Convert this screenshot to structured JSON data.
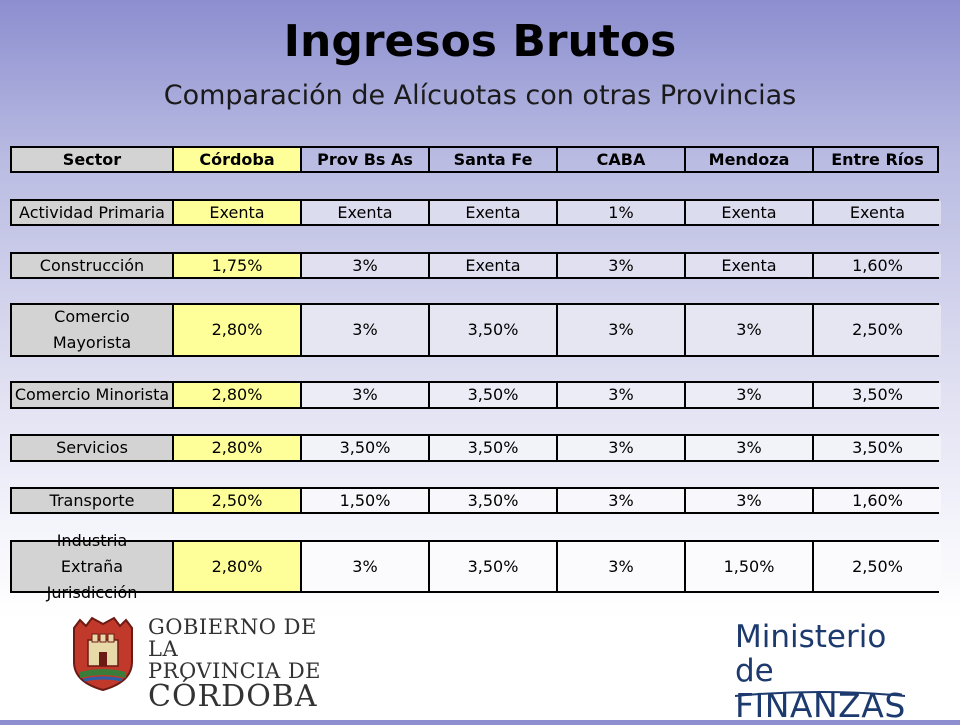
{
  "title": "Ingresos Brutos",
  "subtitle": "Comparación de Alícuotas con otras Provincias",
  "table": {
    "header": [
      "Sector",
      "Córdoba",
      "Prov Bs As",
      "Santa Fe",
      "CABA",
      "Mendoza",
      "Entre Ríos"
    ],
    "rows": [
      [
        "Actividad Primaria",
        "Exenta",
        "Exenta",
        "Exenta",
        "1%",
        "Exenta",
        "Exenta"
      ],
      [
        "Construcción",
        "1,75%",
        "3%",
        "Exenta",
        "3%",
        "Exenta",
        "1,60%"
      ],
      [
        "Comercio Mayorista",
        "2,80%",
        "3%",
        "3,50%",
        "3%",
        "3%",
        "2,50%"
      ],
      [
        "Comercio Minorista",
        "2,80%",
        "3%",
        "3,50%",
        "3%",
        "3%",
        "3,50%"
      ],
      [
        "Servicios",
        "2,80%",
        "3,50%",
        "3,50%",
        "3%",
        "3%",
        "3,50%"
      ],
      [
        "Transporte",
        "2,50%",
        "1,50%",
        "3,50%",
        "3%",
        "3%",
        "1,60%"
      ],
      [
        "Industria Extraña Jurisdicción",
        "2,80%",
        "3%",
        "3,50%",
        "3%",
        "1,50%",
        "2,50%"
      ]
    ]
  },
  "logos": {
    "gobierno": {
      "line1": "GOBIERNO DE LA",
      "line2": "PROVINCIA DE",
      "line3": "CÓRDOBA"
    },
    "ministerio": {
      "line1": "Ministerio de",
      "line2": "FINANZAS"
    }
  },
  "colors": {
    "cordoba_col": "#ffff99",
    "sector_col": "#d3d3d3",
    "ministerio_text": "#1d3a6e"
  }
}
